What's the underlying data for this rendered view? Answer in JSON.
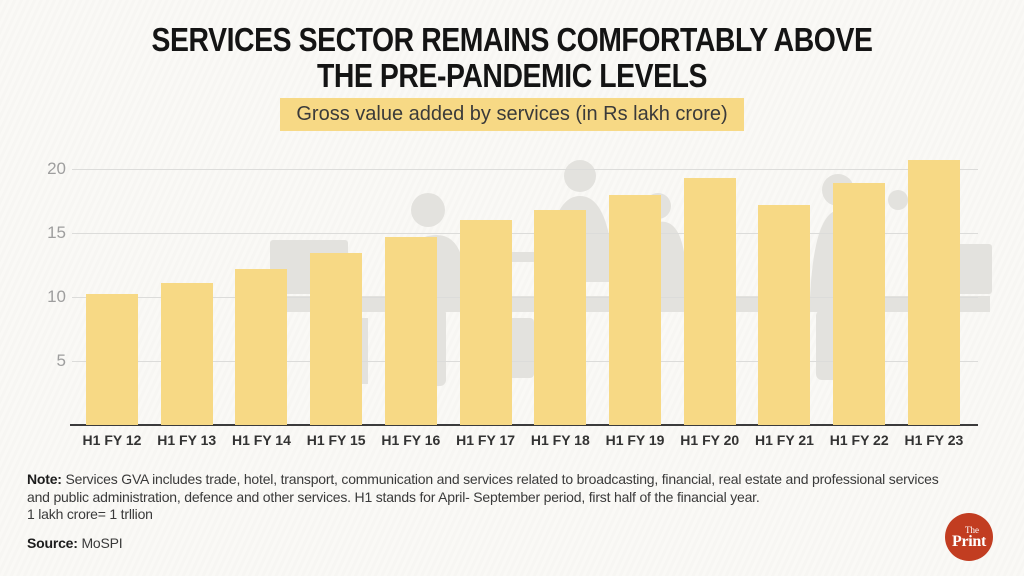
{
  "header": {
    "title_line1": "SERVICES SECTOR REMAINS COMFORTABLY ABOVE",
    "title_line2": "THE PRE-PANDEMIC LEVELS",
    "subtitle": "Gross value added by services (in Rs lakh crore)"
  },
  "chart_data": {
    "type": "bar",
    "title": "Gross value added by services (in Rs lakh crore)",
    "categories": [
      "H1 FY 12",
      "H1 FY 13",
      "H1 FY 14",
      "H1 FY 15",
      "H1 FY 16",
      "H1 FY 17",
      "H1 FY 18",
      "H1 FY 19",
      "H1 FY 20",
      "H1 FY 21",
      "H1 FY 22",
      "H1 FY 23"
    ],
    "values": [
      10.2,
      11.1,
      12.2,
      13.4,
      14.7,
      16.0,
      16.8,
      18.0,
      19.3,
      17.2,
      18.9,
      20.7
    ],
    "xlabel": "",
    "ylabel": "",
    "y_ticks": [
      5,
      10,
      15,
      20
    ],
    "ylim": [
      0,
      21.5
    ],
    "grid": true,
    "legend_position": "none",
    "bar_color": "#f7d985",
    "gridline_color": "#dcdcda",
    "axis_color": "#3b3b3b"
  },
  "footer": {
    "note_label": "Note:",
    "note_line1": "Services GVA includes trade, hotel, transport, communication and services related to broadcasting, financial, real estate and professional services",
    "note_line2": "and public administration, defence and other services. H1 stands for April- September period, first half of the financial year.",
    "note_line3": "1 lakh crore= 1 trllion",
    "source_label": "Source:",
    "source_value": "MoSPI"
  },
  "logo": {
    "name": "ThePrint",
    "line_top": "The",
    "line_bottom": "Print",
    "color": "#c23d21"
  }
}
